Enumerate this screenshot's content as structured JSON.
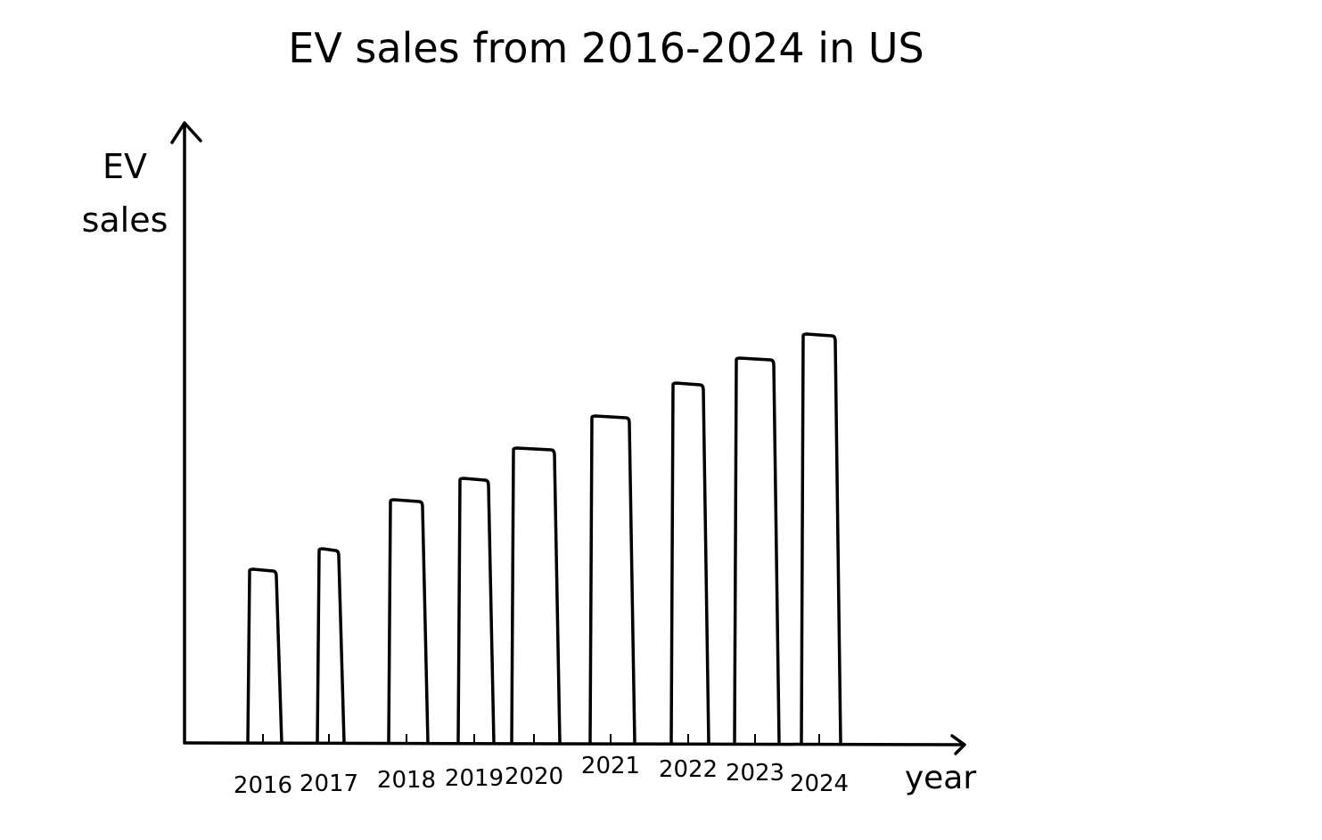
{
  "chart_data": {
    "type": "bar",
    "title": "EV sales from 2016-2024 in US",
    "xlabel": "year",
    "ylabel": "EV sales",
    "categories": [
      "2016",
      "2017",
      "2018",
      "2019",
      "2020",
      "2021",
      "2022",
      "2023",
      "2024"
    ],
    "values": [
      195,
      218,
      273,
      297,
      331,
      367,
      404,
      432,
      459
    ],
    "ylim": [
      0,
      700
    ],
    "grid": false,
    "legend": "none"
  }
}
